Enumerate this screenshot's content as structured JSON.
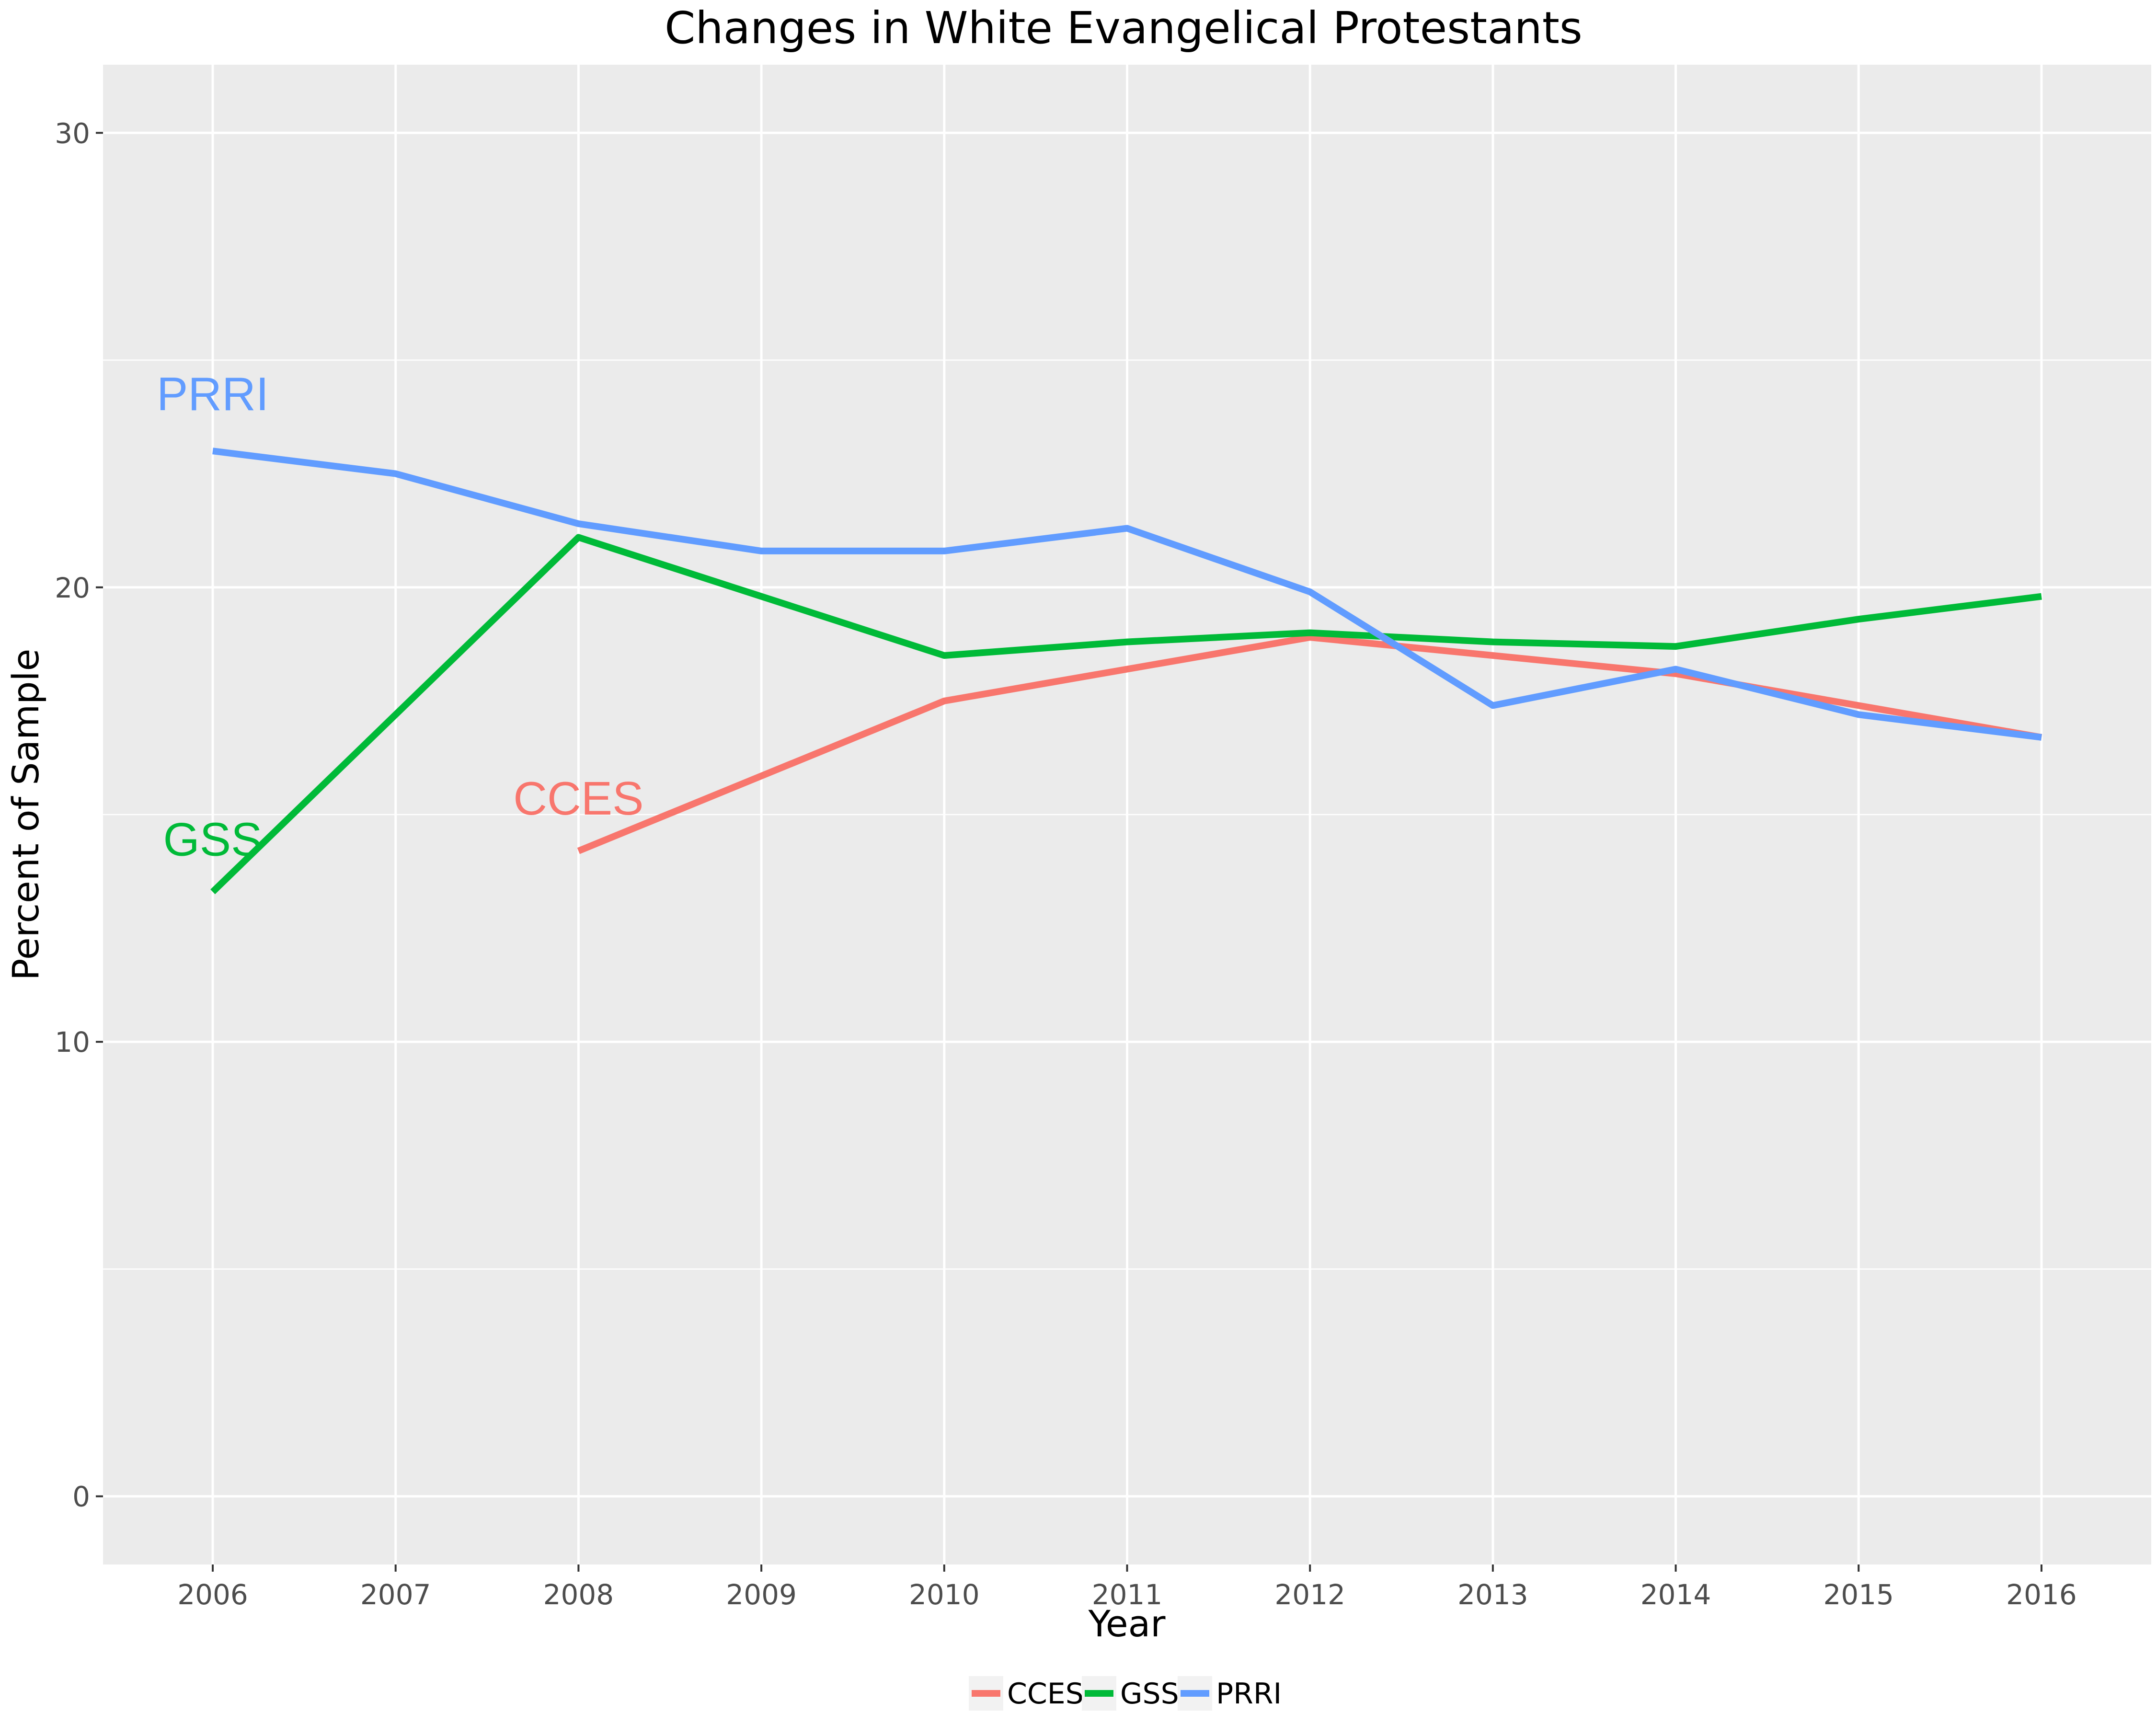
{
  "chart_data": {
    "type": "line",
    "title": "Changes in White Evangelical Protestants",
    "xlabel": "Year",
    "ylabel": "Percent of Sample",
    "x": [
      2006,
      2007,
      2008,
      2009,
      2010,
      2011,
      2012,
      2013,
      2014,
      2015,
      2016
    ],
    "xlim": [
      2005.4,
      2016.6
    ],
    "ylim": [
      -1.5,
      31.5
    ],
    "y_ticks": [
      0,
      10,
      20,
      30
    ],
    "grid": true,
    "legend_position": "bottom",
    "series": [
      {
        "name": "CCES",
        "color": "#F8766D",
        "points": [
          [
            2008,
            14.2
          ],
          [
            2010,
            17.5
          ],
          [
            2011,
            18.2
          ],
          [
            2012,
            18.9
          ],
          [
            2013,
            18.5
          ],
          [
            2014,
            18.1
          ],
          [
            2015,
            17.4
          ],
          [
            2016,
            16.7
          ]
        ]
      },
      {
        "name": "GSS",
        "color": "#00BA38",
        "points": [
          [
            2006,
            13.3
          ],
          [
            2007,
            17.2
          ],
          [
            2008,
            21.1
          ],
          [
            2009,
            19.8
          ],
          [
            2010,
            18.5
          ],
          [
            2011,
            18.8
          ],
          [
            2012,
            19.0
          ],
          [
            2013,
            18.8
          ],
          [
            2014,
            18.7
          ],
          [
            2015,
            19.3
          ],
          [
            2016,
            19.8
          ]
        ]
      },
      {
        "name": "PRRI",
        "color": "#619CFF",
        "points": [
          [
            2006,
            23.0
          ],
          [
            2007,
            22.5
          ],
          [
            2008,
            21.4
          ],
          [
            2009,
            20.8
          ],
          [
            2010,
            20.8
          ],
          [
            2011,
            21.3
          ],
          [
            2012,
            19.9
          ],
          [
            2013,
            17.4
          ],
          [
            2014,
            18.2
          ],
          [
            2015,
            17.2
          ],
          [
            2016,
            16.7
          ]
        ]
      }
    ],
    "annotations": [
      {
        "text": "PRRI",
        "x": 2006,
        "y": 23.9,
        "color": "#619CFF"
      },
      {
        "text": "GSS",
        "x": 2006,
        "y": 14.1,
        "color": "#00BA38"
      },
      {
        "text": "CCES",
        "x": 2008,
        "y": 15.0,
        "color": "#F8766D"
      }
    ]
  }
}
